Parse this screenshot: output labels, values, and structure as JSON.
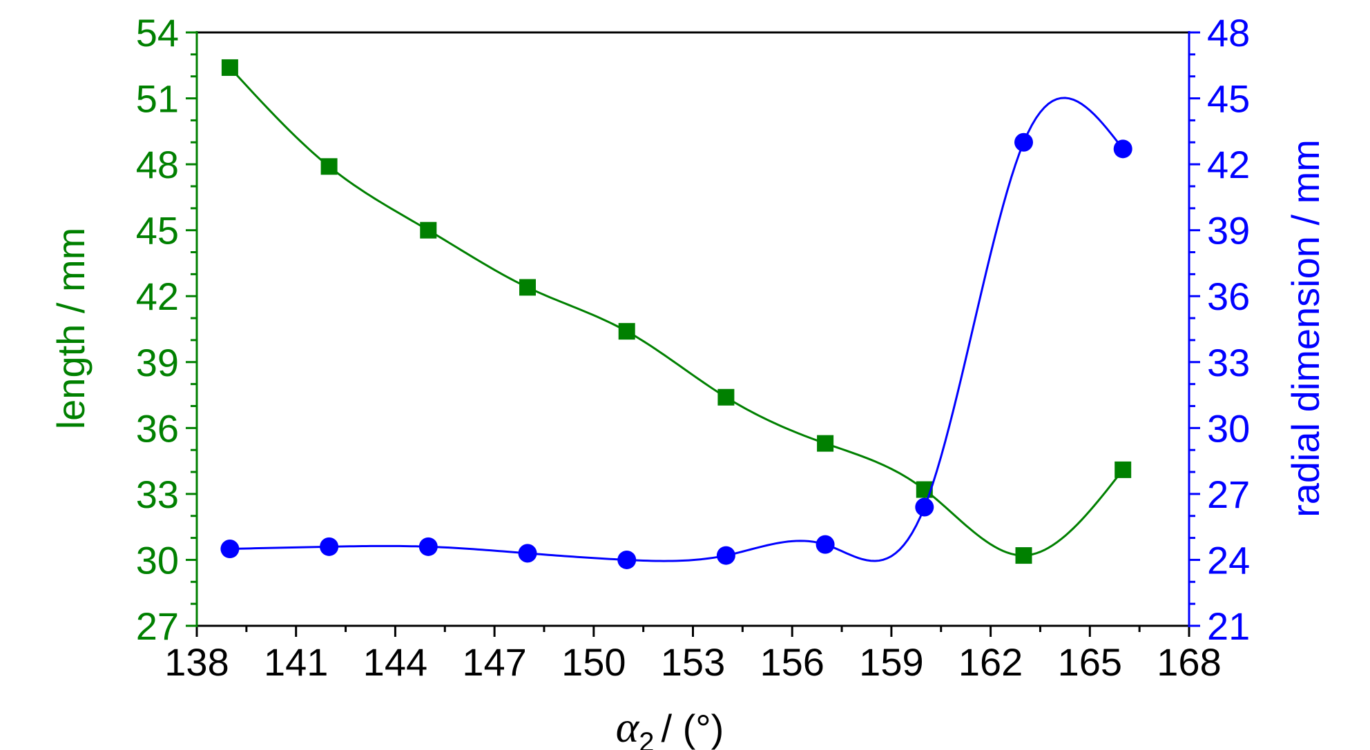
{
  "chart_data": {
    "type": "line",
    "title": "",
    "xlabel": {
      "symbol": "α",
      "subscript": "2",
      "unit": "/ (°)"
    },
    "ylabel_left": "length / mm",
    "ylabel_right": "radial dimension / mm",
    "xlim": [
      138,
      168
    ],
    "ylim_left": [
      27,
      54
    ],
    "ylim_right": [
      21,
      48
    ],
    "x_ticks": [
      "138",
      "141",
      "144",
      "147",
      "150",
      "153",
      "156",
      "159",
      "162",
      "165",
      "168"
    ],
    "y_left_ticks": [
      "27",
      "30",
      "33",
      "36",
      "39",
      "42",
      "45",
      "48",
      "51",
      "54"
    ],
    "y_right_ticks": [
      "21",
      "24",
      "27",
      "30",
      "33",
      "36",
      "39",
      "42",
      "45",
      "48"
    ],
    "grid": false,
    "legend": "none",
    "series": [
      {
        "axis": "left",
        "marker": "square",
        "color": "#008000",
        "x": [
          139,
          142,
          145,
          148,
          151,
          154,
          157,
          160,
          163,
          166
        ],
        "values": [
          52.4,
          47.9,
          45.0,
          42.4,
          40.4,
          37.4,
          35.3,
          33.2,
          30.2,
          34.1
        ]
      },
      {
        "axis": "right",
        "marker": "circle",
        "color": "#0000ff",
        "x": [
          139,
          142,
          145,
          148,
          151,
          154,
          157,
          160,
          163,
          166
        ],
        "values": [
          24.5,
          24.6,
          24.6,
          24.3,
          24.0,
          24.2,
          24.7,
          26.4,
          43.0,
          42.7
        ]
      }
    ],
    "colors": {
      "frame": "#000000",
      "left_axis": "#008000",
      "right_axis": "#0000ff"
    }
  }
}
